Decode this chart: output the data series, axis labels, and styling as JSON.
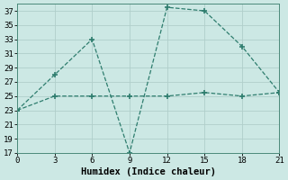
{
  "line1_x": [
    0,
    3,
    6,
    9,
    12,
    15,
    18,
    21
  ],
  "line1_y": [
    23,
    28,
    33,
    17,
    37.5,
    37,
    32,
    25.5
  ],
  "line2_x": [
    0,
    3,
    6,
    9,
    12,
    15,
    18,
    21
  ],
  "line2_y": [
    23,
    25,
    25,
    25,
    25,
    25.5,
    25,
    25.5
  ],
  "line_color": "#2e7d6e",
  "bg_color": "#cce8e4",
  "grid_color": "#b0ceca",
  "xlabel": "Humidex (Indice chaleur)",
  "xlim": [
    0,
    21
  ],
  "ylim": [
    17,
    38
  ],
  "xticks": [
    0,
    3,
    6,
    9,
    12,
    15,
    18,
    21
  ],
  "yticks": [
    17,
    19,
    21,
    23,
    25,
    27,
    29,
    31,
    33,
    35,
    37
  ],
  "label_fontsize": 7.5,
  "tick_fontsize": 6.5
}
